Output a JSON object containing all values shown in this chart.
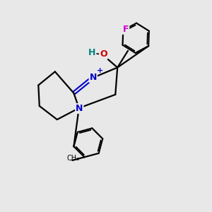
{
  "bg_color": "#e8e8e8",
  "bond_color": "#000000",
  "N_color": "#0000cc",
  "O_color": "#cc0000",
  "F_color": "#cc00cc",
  "H_color": "#008080",
  "plus_color": "#0000cc",
  "line_width": 1.6,
  "figsize": [
    3.0,
    3.0
  ],
  "dpi": 100,
  "xlim": [
    0,
    10
  ],
  "ylim": [
    0,
    10
  ]
}
